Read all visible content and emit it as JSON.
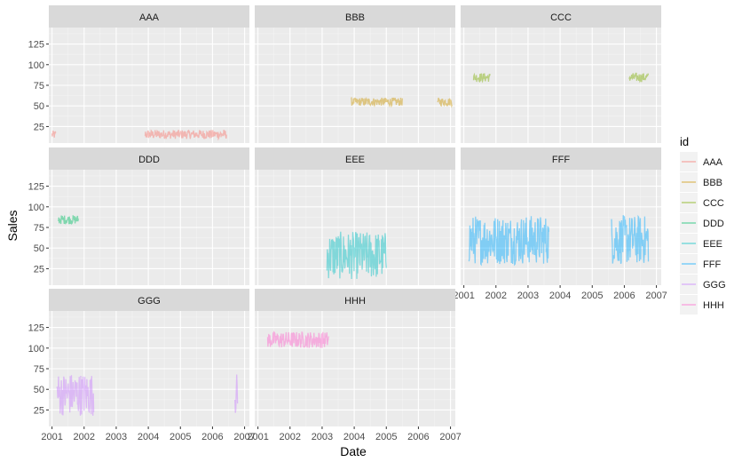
{
  "chart_data": {
    "type": "line",
    "facet_by": "id",
    "xlabel": "Date",
    "ylabel": "Sales",
    "xlim": [
      2000.9,
      2007.15
    ],
    "ylim": [
      5,
      145
    ],
    "x_ticks": [
      2001,
      2002,
      2003,
      2004,
      2005,
      2006,
      2007
    ],
    "x_tick_labels": [
      "2001",
      "2002",
      "2003",
      "2004",
      "2005",
      "2006",
      "2007"
    ],
    "y_ticks": [
      25,
      50,
      75,
      100,
      125
    ],
    "y_tick_labels": [
      "25",
      "50",
      "75",
      "100",
      "125"
    ],
    "legend": {
      "title": "id",
      "position": "right",
      "entries": [
        "AAA",
        "BBB",
        "CCC",
        "DDD",
        "EEE",
        "FFF",
        "GGG",
        "HHH"
      ]
    },
    "series": [
      {
        "name": "AAA",
        "color": "#F8766D",
        "segments": [
          {
            "x_start": 2001.0,
            "x_end": 2001.12,
            "y_min": 10,
            "y_max": 20
          },
          {
            "x_start": 2003.9,
            "x_end": 2006.45,
            "y_min": 10,
            "y_max": 21
          }
        ]
      },
      {
        "name": "BBB",
        "color": "#CD9600",
        "segments": [
          {
            "x_start": 2003.9,
            "x_end": 2005.5,
            "y_min": 50,
            "y_max": 60
          },
          {
            "x_start": 2006.6,
            "x_end": 2007.05,
            "y_min": 50,
            "y_max": 60
          }
        ]
      },
      {
        "name": "CCC",
        "color": "#7CAE00",
        "segments": [
          {
            "x_start": 2001.3,
            "x_end": 2001.82,
            "y_min": 79,
            "y_max": 90
          },
          {
            "x_start": 2006.15,
            "x_end": 2006.75,
            "y_min": 79,
            "y_max": 90
          }
        ]
      },
      {
        "name": "DDD",
        "color": "#00BE67",
        "segments": [
          {
            "x_start": 2001.2,
            "x_end": 2001.82,
            "y_min": 79,
            "y_max": 90
          }
        ]
      },
      {
        "name": "EEE",
        "color": "#00BFC4",
        "segments": [
          {
            "x_start": 2003.15,
            "x_end": 2005.0,
            "y_min": 12,
            "y_max": 70
          }
        ]
      },
      {
        "name": "FFF",
        "color": "#00A9FF",
        "segments": [
          {
            "x_start": 2001.15,
            "x_end": 2003.65,
            "y_min": 30,
            "y_max": 90
          },
          {
            "x_start": 2005.6,
            "x_end": 2006.75,
            "y_min": 30,
            "y_max": 90
          }
        ]
      },
      {
        "name": "GGG",
        "color": "#C77CFF",
        "segments": [
          {
            "x_start": 2001.15,
            "x_end": 2002.3,
            "y_min": 18,
            "y_max": 70
          },
          {
            "x_start": 2006.7,
            "x_end": 2006.78,
            "y_min": 18,
            "y_max": 70
          }
        ]
      },
      {
        "name": "HHH",
        "color": "#FF61CC",
        "segments": [
          {
            "x_start": 2001.3,
            "x_end": 2003.2,
            "y_min": 100,
            "y_max": 120
          }
        ]
      }
    ]
  }
}
